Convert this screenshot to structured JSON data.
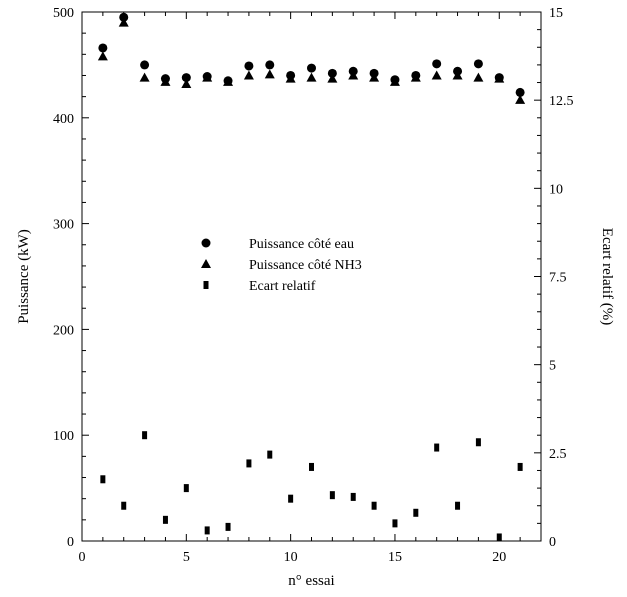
{
  "chart_data": {
    "type": "scatter",
    "xlabel": "n° essai",
    "ylabel_left": "Puissance (kW)",
    "ylabel_right": "Ecart relatif (%)",
    "xlim": [
      0,
      22
    ],
    "ylim_left": [
      0,
      500
    ],
    "ylim_right": [
      0,
      15
    ],
    "x_ticks": [
      0,
      5,
      10,
      15,
      20
    ],
    "x_tick_labels": [
      "0",
      "5",
      "10",
      "15",
      "20"
    ],
    "y_left_ticks": [
      0,
      100,
      200,
      300,
      400,
      500
    ],
    "y_left_tick_labels": [
      "0",
      "100",
      "200",
      "300",
      "400",
      "500"
    ],
    "y_right_ticks": [
      0,
      2.5,
      5,
      7.5,
      10,
      12.5,
      15
    ],
    "y_right_tick_labels": [
      "0",
      "2.5",
      "5",
      "7.5",
      "10",
      "12.5",
      "15"
    ],
    "grid": false,
    "legend_position": "center-left",
    "series": [
      {
        "name": "Puissance côté eau",
        "marker": "circle",
        "axis": "left",
        "x": [
          1,
          2,
          3,
          4,
          5,
          6,
          7,
          8,
          9,
          10,
          11,
          12,
          13,
          14,
          15,
          16,
          17,
          18,
          19,
          20,
          21
        ],
        "y": [
          466,
          495,
          450,
          437,
          438,
          439,
          435,
          449,
          450,
          440,
          447,
          442,
          444,
          442,
          436,
          440,
          451,
          444,
          451,
          438,
          424
        ]
      },
      {
        "name": "Puissance côté NH3",
        "marker": "triangle",
        "axis": "left",
        "x": [
          1,
          2,
          3,
          4,
          5,
          6,
          7,
          8,
          9,
          10,
          11,
          12,
          13,
          14,
          15,
          16,
          17,
          18,
          19,
          20,
          21
        ],
        "y": [
          458,
          490,
          438,
          434,
          432,
          438,
          434,
          440,
          441,
          437,
          438,
          437,
          440,
          438,
          434,
          438,
          440,
          440,
          438,
          437,
          417
        ]
      },
      {
        "name": "Ecart relatif",
        "marker": "rect",
        "axis": "right",
        "x": [
          1,
          2,
          3,
          4,
          5,
          6,
          7,
          8,
          9,
          10,
          11,
          12,
          13,
          14,
          15,
          16,
          17,
          18,
          19,
          20,
          21
        ],
        "y": [
          1.75,
          1.0,
          3.0,
          0.6,
          1.5,
          0.3,
          0.4,
          2.2,
          2.45,
          1.2,
          2.1,
          1.3,
          1.25,
          1.0,
          0.5,
          0.8,
          2.65,
          1.0,
          2.8,
          0.1,
          2.1
        ]
      }
    ]
  }
}
